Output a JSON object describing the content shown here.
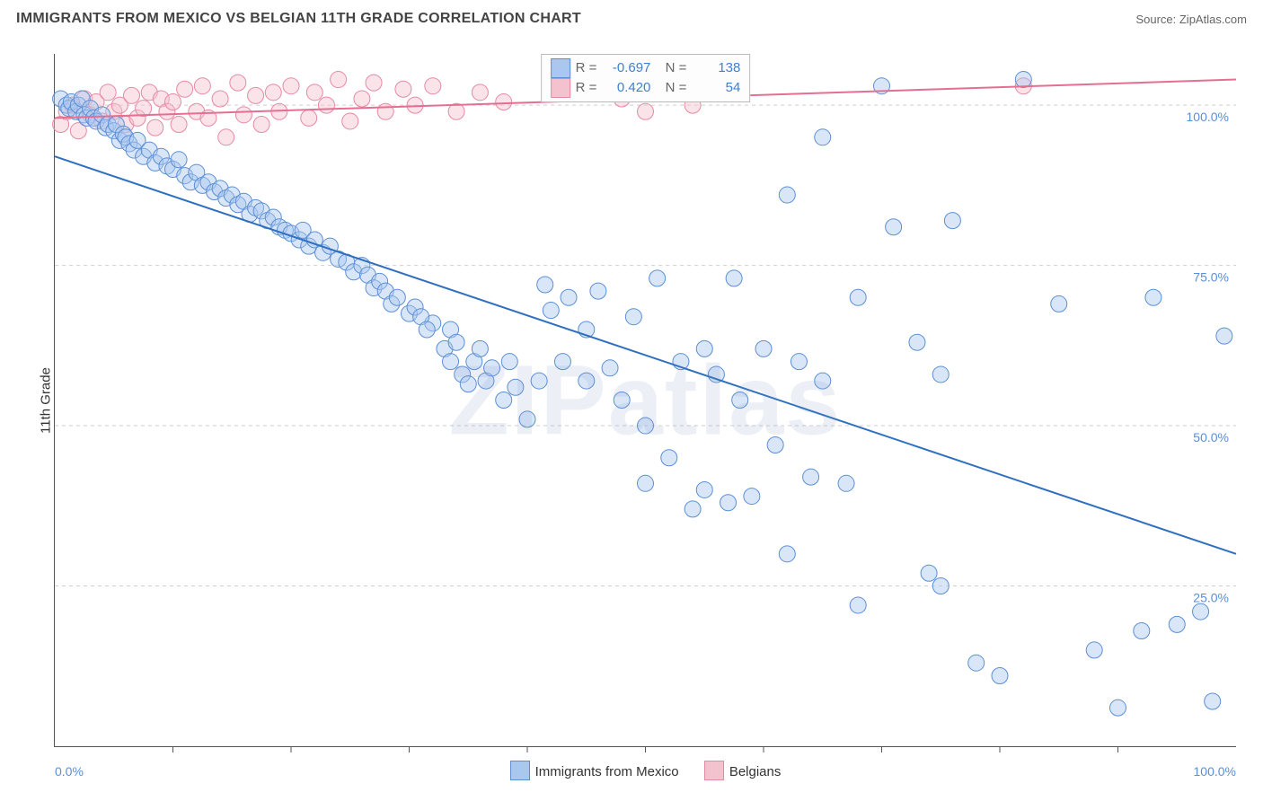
{
  "header": {
    "title": "IMMIGRANTS FROM MEXICO VS BELGIAN 11TH GRADE CORRELATION CHART",
    "source_prefix": "Source: ",
    "source_site": "ZipAtlas.com"
  },
  "y_axis_label": "11th Grade",
  "x_end_left": "0.0%",
  "x_end_right": "100.0%",
  "y_ticks": [
    {
      "v": 25,
      "label": "25.0%"
    },
    {
      "v": 50,
      "label": "50.0%"
    },
    {
      "v": 75,
      "label": "75.0%"
    },
    {
      "v": 100,
      "label": "100.0%"
    }
  ],
  "watermark": "ZIPatlas",
  "chart": {
    "type": "scatter-correlation",
    "xlim": [
      0,
      100
    ],
    "ylim": [
      0,
      108
    ],
    "grid_color": "#cfcfcf",
    "axis_color": "#555555",
    "background": "#ffffff",
    "point_radius": 9,
    "point_opacity": 0.45,
    "series": [
      {
        "key": "mexico",
        "label": "Immigrants from Mexico",
        "fill": "#aac8ef",
        "stroke": "#5b8fd6",
        "reg_line_color": "#2f6fbf",
        "R_label": "R =",
        "R": "-0.697",
        "N_label": "N =",
        "N": "138",
        "reg_line": {
          "x1": 0,
          "y1": 92,
          "x2": 100,
          "y2": 30
        },
        "points": [
          [
            0.5,
            101
          ],
          [
            1,
            100
          ],
          [
            1.2,
            99.5
          ],
          [
            1.4,
            100.5
          ],
          [
            1.8,
            99
          ],
          [
            2,
            100
          ],
          [
            2.3,
            101
          ],
          [
            2.5,
            98.5
          ],
          [
            2.7,
            98
          ],
          [
            3,
            99.5
          ],
          [
            3.3,
            98
          ],
          [
            3.5,
            97.5
          ],
          [
            4,
            98.5
          ],
          [
            4.3,
            96.5
          ],
          [
            4.5,
            97
          ],
          [
            5,
            96
          ],
          [
            5.2,
            97
          ],
          [
            5.5,
            94.5
          ],
          [
            5.8,
            95.5
          ],
          [
            6,
            95
          ],
          [
            6.3,
            94
          ],
          [
            6.7,
            93
          ],
          [
            7,
            94.5
          ],
          [
            7.5,
            92
          ],
          [
            8,
            93
          ],
          [
            8.5,
            91
          ],
          [
            9,
            92
          ],
          [
            9.5,
            90.5
          ],
          [
            10,
            90
          ],
          [
            10.5,
            91.5
          ],
          [
            11,
            89
          ],
          [
            11.5,
            88
          ],
          [
            12,
            89.5
          ],
          [
            12.5,
            87.5
          ],
          [
            13,
            88
          ],
          [
            13.5,
            86.5
          ],
          [
            14,
            87
          ],
          [
            14.5,
            85.5
          ],
          [
            15,
            86
          ],
          [
            15.5,
            84.5
          ],
          [
            16,
            85
          ],
          [
            16.5,
            83
          ],
          [
            17,
            84
          ],
          [
            17.5,
            83.5
          ],
          [
            18,
            82
          ],
          [
            18.5,
            82.5
          ],
          [
            19,
            81
          ],
          [
            19.5,
            80.5
          ],
          [
            20,
            80
          ],
          [
            20.7,
            79
          ],
          [
            21,
            80.5
          ],
          [
            21.5,
            78
          ],
          [
            22,
            79
          ],
          [
            22.7,
            77
          ],
          [
            23.3,
            78
          ],
          [
            24,
            76
          ],
          [
            24.7,
            75.5
          ],
          [
            25.3,
            74
          ],
          [
            26,
            75
          ],
          [
            26.5,
            73.5
          ],
          [
            27,
            71.5
          ],
          [
            27.5,
            72.5
          ],
          [
            28,
            71
          ],
          [
            28.5,
            69
          ],
          [
            29,
            70
          ],
          [
            32,
            66
          ],
          [
            30,
            67.5
          ],
          [
            30.5,
            68.5
          ],
          [
            31,
            67
          ],
          [
            31.5,
            65
          ],
          [
            33,
            62
          ],
          [
            33.5,
            65
          ],
          [
            33.5,
            60
          ],
          [
            34,
            63
          ],
          [
            34.5,
            58
          ],
          [
            35,
            56.5
          ],
          [
            35.5,
            60
          ],
          [
            36,
            62
          ],
          [
            36.5,
            57
          ],
          [
            37,
            59
          ],
          [
            38,
            54
          ],
          [
            38.5,
            60
          ],
          [
            39,
            56
          ],
          [
            40,
            51
          ],
          [
            41,
            57
          ],
          [
            41.5,
            72
          ],
          [
            42,
            68
          ],
          [
            43,
            60
          ],
          [
            43.5,
            70
          ],
          [
            45,
            65
          ],
          [
            45,
            57
          ],
          [
            46,
            71
          ],
          [
            47,
            59
          ],
          [
            48,
            54
          ],
          [
            49,
            67
          ],
          [
            50,
            41
          ],
          [
            50,
            50
          ],
          [
            51,
            73
          ],
          [
            52,
            45
          ],
          [
            53,
            60
          ],
          [
            54,
            37
          ],
          [
            55,
            62
          ],
          [
            55,
            40
          ],
          [
            56,
            58
          ],
          [
            57,
            38
          ],
          [
            57.5,
            73
          ],
          [
            58,
            54
          ],
          [
            59,
            39
          ],
          [
            60,
            62
          ],
          [
            61,
            47
          ],
          [
            62,
            86
          ],
          [
            62,
            30
          ],
          [
            63,
            60
          ],
          [
            64,
            42
          ],
          [
            65,
            95
          ],
          [
            65,
            57
          ],
          [
            67,
            41
          ],
          [
            68,
            70
          ],
          [
            70,
            103
          ],
          [
            71,
            81
          ],
          [
            73,
            63
          ],
          [
            74,
            27
          ],
          [
            75,
            58
          ],
          [
            75,
            25
          ],
          [
            76,
            82
          ],
          [
            78,
            13
          ],
          [
            80,
            11
          ],
          [
            85,
            69
          ],
          [
            82,
            104
          ],
          [
            92,
            18
          ],
          [
            93,
            70
          ],
          [
            95,
            19
          ],
          [
            97,
            21
          ],
          [
            99,
            64
          ],
          [
            98,
            7
          ],
          [
            90,
            6
          ],
          [
            68,
            22
          ],
          [
            88,
            15
          ]
        ]
      },
      {
        "key": "belgians",
        "label": "Belgians",
        "fill": "#f4c2cf",
        "stroke": "#e68aa4",
        "reg_line_color": "#e46f92",
        "R_label": "R =",
        "R": "0.420",
        "N_label": "N =",
        "N": "54",
        "reg_line": {
          "x1": 0,
          "y1": 98,
          "x2": 100,
          "y2": 104
        },
        "points": [
          [
            0.5,
            97
          ],
          [
            1,
            99
          ],
          [
            1.5,
            100
          ],
          [
            2,
            96
          ],
          [
            2.5,
            101
          ],
          [
            3,
            98.5
          ],
          [
            3.5,
            100.5
          ],
          [
            4,
            97.5
          ],
          [
            4.5,
            102
          ],
          [
            5,
            99
          ],
          [
            5.5,
            100
          ],
          [
            6,
            97
          ],
          [
            6.5,
            101.5
          ],
          [
            7,
            98
          ],
          [
            7.5,
            99.5
          ],
          [
            8,
            102
          ],
          [
            8.5,
            96.5
          ],
          [
            9,
            101
          ],
          [
            9.5,
            99
          ],
          [
            10,
            100.5
          ],
          [
            10.5,
            97
          ],
          [
            11,
            102.5
          ],
          [
            12,
            99
          ],
          [
            12.5,
            103
          ],
          [
            13,
            98
          ],
          [
            14,
            101
          ],
          [
            14.5,
            95
          ],
          [
            15.5,
            103.5
          ],
          [
            16,
            98.5
          ],
          [
            17,
            101.5
          ],
          [
            17.5,
            97
          ],
          [
            18.5,
            102
          ],
          [
            19,
            99
          ],
          [
            20,
            103
          ],
          [
            21.5,
            98
          ],
          [
            22,
            102
          ],
          [
            23,
            100
          ],
          [
            24,
            104
          ],
          [
            25,
            97.5
          ],
          [
            26,
            101
          ],
          [
            27,
            103.5
          ],
          [
            28,
            99
          ],
          [
            29.5,
            102.5
          ],
          [
            30.5,
            100
          ],
          [
            32,
            103
          ],
          [
            34,
            99
          ],
          [
            36,
            102
          ],
          [
            38,
            100.5
          ],
          [
            45,
            102
          ],
          [
            48,
            101
          ],
          [
            51,
            103
          ],
          [
            54,
            100
          ],
          [
            50,
            99
          ],
          [
            82,
            103
          ]
        ]
      }
    ]
  },
  "legend_bottom": {
    "items": [
      {
        "label": "Immigrants from Mexico",
        "series": "mexico"
      },
      {
        "label": "Belgians",
        "series": "belgians"
      }
    ]
  }
}
